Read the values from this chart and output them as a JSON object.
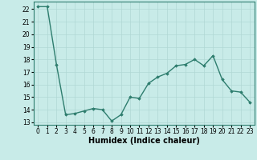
{
  "x": [
    0,
    1,
    2,
    3,
    4,
    5,
    6,
    7,
    8,
    9,
    10,
    11,
    12,
    13,
    14,
    15,
    16,
    17,
    18,
    19,
    20,
    21,
    22,
    23
  ],
  "y": [
    22.2,
    22.2,
    17.6,
    13.6,
    13.7,
    13.9,
    14.1,
    14.0,
    13.1,
    13.6,
    15.0,
    14.9,
    16.1,
    16.6,
    16.9,
    17.5,
    17.6,
    18.0,
    17.5,
    18.3,
    16.4,
    15.5,
    15.4,
    14.6
  ],
  "line_color": "#2e7d6e",
  "marker": "D",
  "marker_size": 1.8,
  "bg_color": "#c8ebe8",
  "grid_major_color": "#b0d8d4",
  "grid_minor_color": "#b0d8d4",
  "xlabel": "Humidex (Indice chaleur)",
  "ylim": [
    12.8,
    22.6
  ],
  "xlim": [
    -0.5,
    23.5
  ],
  "yticks": [
    13,
    14,
    15,
    16,
    17,
    18,
    19,
    20,
    21,
    22
  ],
  "xtick_labels": [
    "0",
    "1",
    "2",
    "3",
    "4",
    "5",
    "6",
    "7",
    "8",
    "9",
    "10",
    "11",
    "12",
    "13",
    "14",
    "15",
    "16",
    "17",
    "18",
    "19",
    "20",
    "21",
    "22",
    "23"
  ],
  "tick_fontsize": 5.5,
  "xlabel_fontsize": 7,
  "line_width": 1.0
}
